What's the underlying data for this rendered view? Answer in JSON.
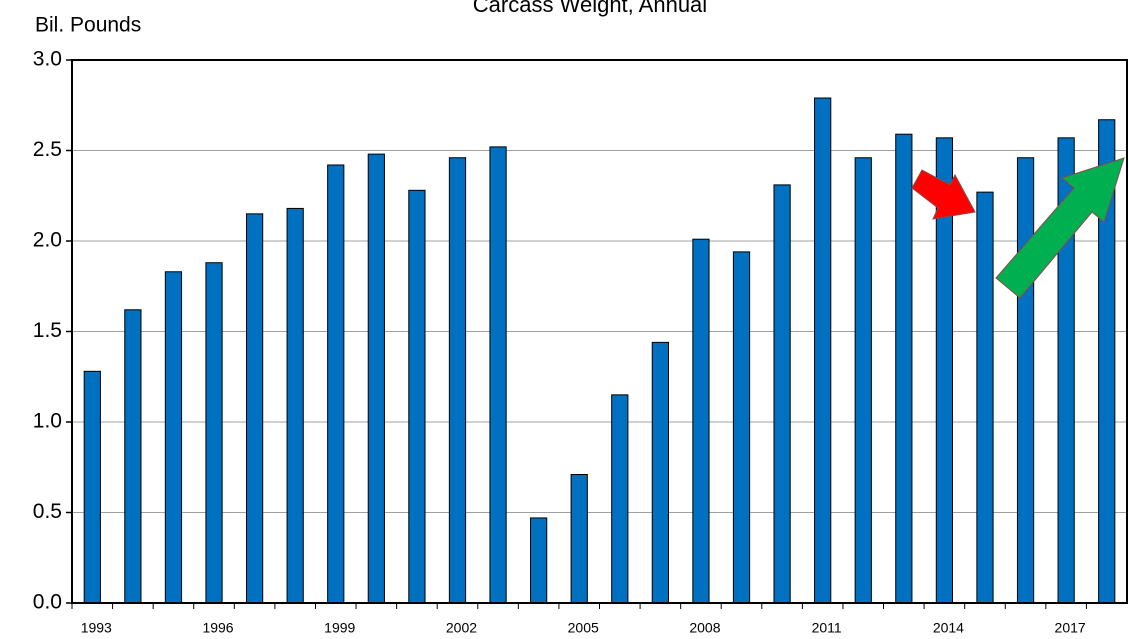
{
  "chart_data": {
    "type": "bar",
    "title": "Carcass Weight, Annual",
    "y_label": "Bil. Pounds",
    "categories": [
      "1993",
      null,
      null,
      "1996",
      null,
      null,
      "1999",
      null,
      null,
      "2002",
      null,
      null,
      "2005",
      null,
      null,
      "2008",
      null,
      null,
      "2011",
      null,
      null,
      "2014",
      null,
      null,
      "2017",
      null
    ],
    "values": [
      1.28,
      1.62,
      1.83,
      1.88,
      2.15,
      2.18,
      2.42,
      2.48,
      2.28,
      2.46,
      2.52,
      0.47,
      0.71,
      1.15,
      1.44,
      2.01,
      1.94,
      2.31,
      2.79,
      2.46,
      2.59,
      2.57,
      2.27,
      2.46,
      2.57,
      2.67
    ],
    "color": "#0070c0",
    "ylim": [
      0,
      3
    ],
    "yticks": [
      {
        "value": 0,
        "label": "0.0"
      },
      0.5,
      {
        "value": 1,
        "label": "1.0"
      },
      1.5,
      {
        "value": 2,
        "label": "2.0"
      },
      2.5,
      {
        "value": 3,
        "label": "3.0"
      }
    ],
    "grid": true
  }
}
